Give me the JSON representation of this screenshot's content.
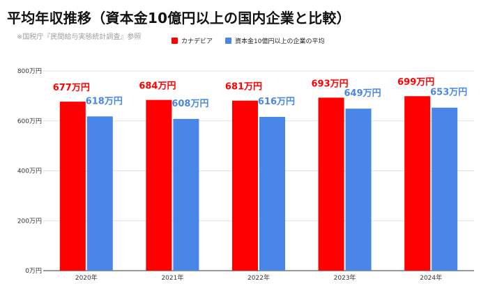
{
  "chart_data": {
    "type": "bar",
    "title": "平均年収推移（資本金10億円以上の国内企業と比較）",
    "subtitle": "※国税庁『民間給与実態統計調査』参照",
    "categories": [
      "2020年",
      "2021年",
      "2022年",
      "2023年",
      "2024年"
    ],
    "series": [
      {
        "name": "カナデビア",
        "values": [
          677,
          684,
          681,
          693,
          699
        ],
        "color": "#ff0000",
        "data_labels": [
          "677万円",
          "684万円",
          "681万円",
          "693万円",
          "699万円"
        ],
        "label_color": "#ff0000"
      },
      {
        "name": "資本金10億円以上の企業の平均",
        "values": [
          618,
          608,
          616,
          649,
          653
        ],
        "color": "#4a86e8",
        "data_labels": [
          "618万円",
          "608万円",
          "616万円",
          "649万円",
          "653万円"
        ],
        "label_color": "#4a86e8"
      }
    ],
    "ylim": [
      0,
      800
    ],
    "yticks": [
      0,
      200,
      400,
      600,
      800
    ],
    "ytick_labels": [
      "0万円",
      "200万円",
      "400万円",
      "600万円",
      "800万円"
    ],
    "grid": true,
    "legend_position": "top"
  }
}
